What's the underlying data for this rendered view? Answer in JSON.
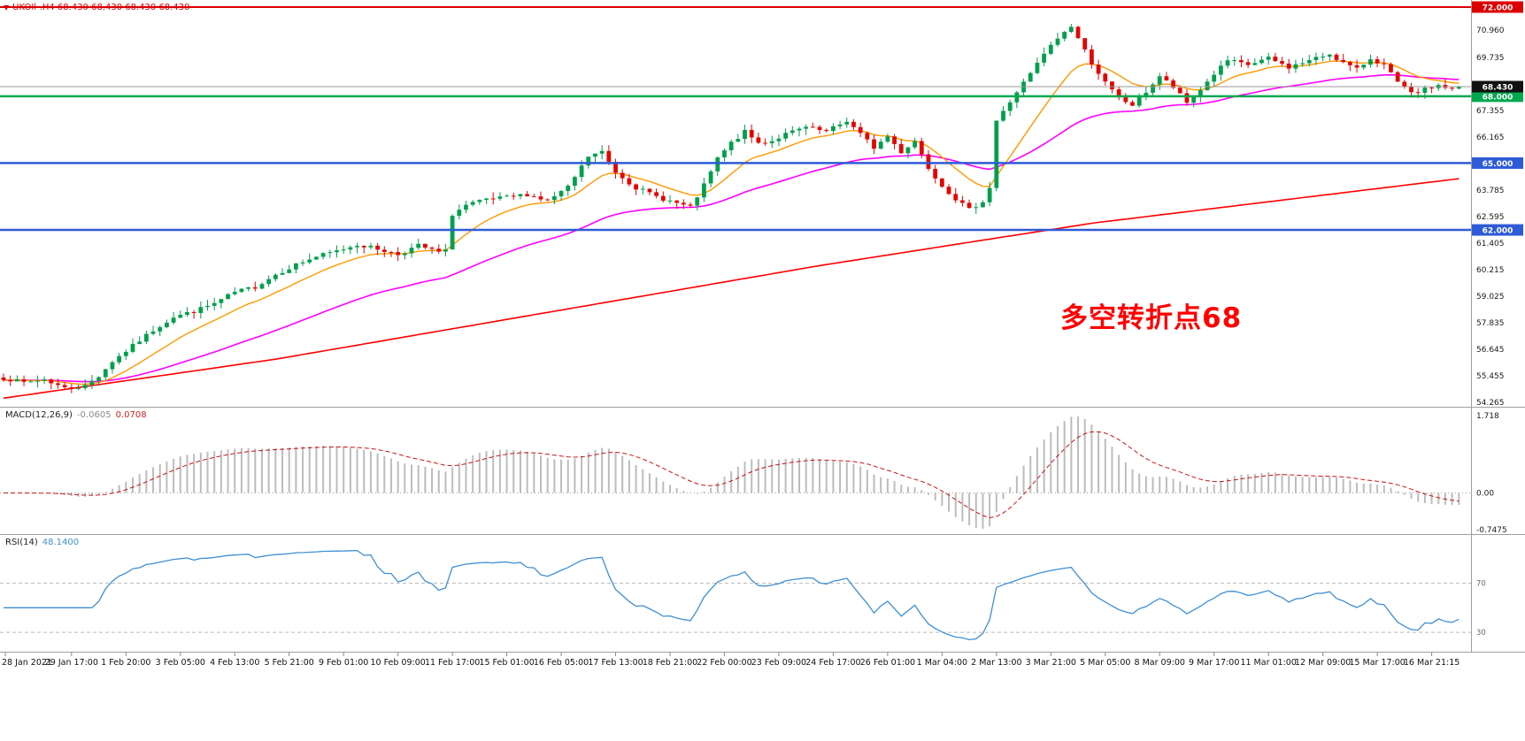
{
  "header": {
    "marker": "▼",
    "title": "UKOIl-.H4 68.430 68.430 68.430 68.430"
  },
  "annotation": {
    "text": "多空转折点68",
    "color": "#ff0000"
  },
  "panels": {
    "macd": {
      "name": "MACD(12,26,9)",
      "value1": "-0.0605",
      "value2": "0.0708"
    },
    "rsi": {
      "name": "RSI(14)",
      "value": "48.1400"
    }
  },
  "chart_data": {
    "type": "candlestick",
    "symbol": "UKOIl-.H4",
    "timeframe": "H4",
    "bars": 215,
    "seed": 7,
    "noise": 0.18,
    "wick": 0.28,
    "price_axis": {
      "min": 54.265,
      "max": 72.0,
      "ticks": [
        "70.960",
        "69.735",
        "67.355",
        "66.165",
        "63.785",
        "62.595",
        "61.405",
        "60.215",
        "59.025",
        "57.835",
        "56.645",
        "55.455",
        "54.265"
      ]
    },
    "hlines": [
      {
        "price": 72.0,
        "label": "72.000",
        "color": "#dd0000",
        "width": 2
      },
      {
        "price": 68.0,
        "label": "68.000",
        "color": "#00a84f",
        "width": 2.5
      },
      {
        "price": 65.0,
        "label": "65.000",
        "color": "#2e5bd7",
        "width": 2.5
      },
      {
        "price": 62.0,
        "label": "62.000",
        "color": "#2e5bd7",
        "width": 2.5
      }
    ],
    "bid": {
      "price": 68.43,
      "label": "68.430",
      "line_color": "#9a9a9a",
      "badge_color": "#111111"
    },
    "colors": {
      "up": "#009f4c",
      "down": "#e10600",
      "ma_fast": "#ff9900",
      "ma_mid": "#ff00ff",
      "ma_slow": "#ff0000",
      "macd_hist": "#bcbcbc",
      "macd_signal": "#cc1111",
      "rsi_line": "#3f8fd2",
      "separator": "#9e9e9e",
      "axis_text": "#1a1a1a",
      "level_dash": "#bbbbbb"
    },
    "close_anchors": [
      [
        0,
        55.35
      ],
      [
        3,
        55.15
      ],
      [
        6,
        55.3
      ],
      [
        9,
        54.9
      ],
      [
        12,
        55.0
      ],
      [
        14,
        55.45
      ],
      [
        16,
        56.1
      ],
      [
        19,
        56.8
      ],
      [
        22,
        57.5
      ],
      [
        25,
        58.1
      ],
      [
        28,
        58.35
      ],
      [
        31,
        58.7
      ],
      [
        34,
        59.2
      ],
      [
        37,
        59.45
      ],
      [
        40,
        60.0
      ],
      [
        43,
        60.45
      ],
      [
        46,
        60.8
      ],
      [
        49,
        61.05
      ],
      [
        52,
        61.35
      ],
      [
        55,
        61.15
      ],
      [
        58,
        60.9
      ],
      [
        61,
        61.3
      ],
      [
        64,
        61.0
      ],
      [
        65,
        61.05
      ],
      [
        66,
        62.7
      ],
      [
        68,
        63.1
      ],
      [
        71,
        63.35
      ],
      [
        74,
        63.45
      ],
      [
        77,
        63.6
      ],
      [
        80,
        63.3
      ],
      [
        83,
        63.9
      ],
      [
        86,
        65.3
      ],
      [
        88,
        65.5
      ],
      [
        90,
        64.6
      ],
      [
        93,
        63.9
      ],
      [
        96,
        63.5
      ],
      [
        99,
        63.2
      ],
      [
        101,
        63.0
      ],
      [
        103,
        64.0
      ],
      [
        105,
        65.2
      ],
      [
        107,
        65.9
      ],
      [
        109,
        66.4
      ],
      [
        111,
        65.9
      ],
      [
        113,
        66.0
      ],
      [
        115,
        66.3
      ],
      [
        118,
        66.6
      ],
      [
        121,
        66.4
      ],
      [
        124,
        66.9
      ],
      [
        126,
        66.3
      ],
      [
        128,
        65.7
      ],
      [
        130,
        66.2
      ],
      [
        132,
        65.5
      ],
      [
        134,
        66.0
      ],
      [
        136,
        64.8
      ],
      [
        138,
        64.0
      ],
      [
        140,
        63.4
      ],
      [
        142,
        62.9
      ],
      [
        144,
        63.3
      ],
      [
        145,
        63.9
      ],
      [
        146,
        66.9
      ],
      [
        147,
        67.3
      ],
      [
        149,
        68.2
      ],
      [
        151,
        69.0
      ],
      [
        153,
        69.9
      ],
      [
        155,
        70.6
      ],
      [
        157,
        71.15
      ],
      [
        158,
        70.6
      ],
      [
        160,
        69.5
      ],
      [
        162,
        68.6
      ],
      [
        164,
        67.9
      ],
      [
        166,
        67.6
      ],
      [
        168,
        68.2
      ],
      [
        170,
        68.9
      ],
      [
        172,
        68.4
      ],
      [
        174,
        67.7
      ],
      [
        176,
        68.3
      ],
      [
        178,
        69.0
      ],
      [
        180,
        69.6
      ],
      [
        183,
        69.4
      ],
      [
        186,
        69.7
      ],
      [
        189,
        69.3
      ],
      [
        192,
        69.6
      ],
      [
        195,
        69.9
      ],
      [
        197,
        69.5
      ],
      [
        199,
        69.2
      ],
      [
        201,
        69.7
      ],
      [
        203,
        69.4
      ],
      [
        205,
        68.6
      ],
      [
        207,
        68.1
      ],
      [
        209,
        68.3
      ],
      [
        211,
        68.5
      ],
      [
        213,
        68.3
      ],
      [
        214,
        68.43
      ]
    ],
    "ma": {
      "fast_period": 12,
      "mid_period": 45,
      "slow_anchors": [
        [
          0,
          54.45
        ],
        [
          40,
          56.2
        ],
        [
          80,
          58.3
        ],
        [
          120,
          60.4
        ],
        [
          160,
          62.3
        ],
        [
          214,
          64.3
        ]
      ]
    },
    "macd": {
      "fast": 12,
      "slow": 26,
      "signal": 9,
      "axis": [
        "1.718",
        "0.00",
        "-0.7475"
      ]
    },
    "rsi": {
      "period": 14,
      "levels": [
        "70",
        "30"
      ]
    },
    "time_labels": [
      "28 Jan 2021",
      "29 Jan 17:00",
      "1 Feb 20:00",
      "3 Feb 05:00",
      "4 Feb 13:00",
      "5 Feb 21:00",
      "9 Feb 01:00",
      "10 Feb 09:00",
      "11 Feb 17:00",
      "15 Feb 01:00",
      "16 Feb 05:00",
      "17 Feb 13:00",
      "18 Feb 21:00",
      "22 Feb 00:00",
      "23 Feb 09:00",
      "24 Feb 17:00",
      "26 Feb 01:00",
      "1 Mar 04:00",
      "2 Mar 13:00",
      "3 Mar 21:00",
      "5 Mar 05:00",
      "8 Mar 09:00",
      "9 Mar 17:00",
      "11 Mar 01:00",
      "12 Mar 09:00",
      "15 Mar 17:00",
      "16 Mar 21:15"
    ]
  }
}
